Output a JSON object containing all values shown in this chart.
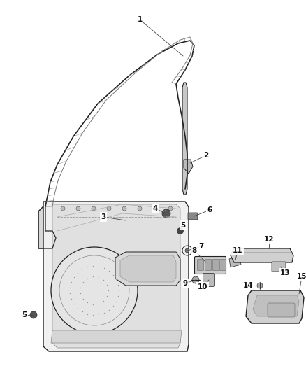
{
  "background_color": "#ffffff",
  "figsize": [
    4.38,
    5.33
  ],
  "dpi": 100,
  "line_color": "#555555",
  "dark_color": "#222222",
  "gray_fill": "#e8e8e8",
  "light_fill": "#f2f2f2",
  "panel_color": "#eeeeee",
  "leader_color": "#333333"
}
